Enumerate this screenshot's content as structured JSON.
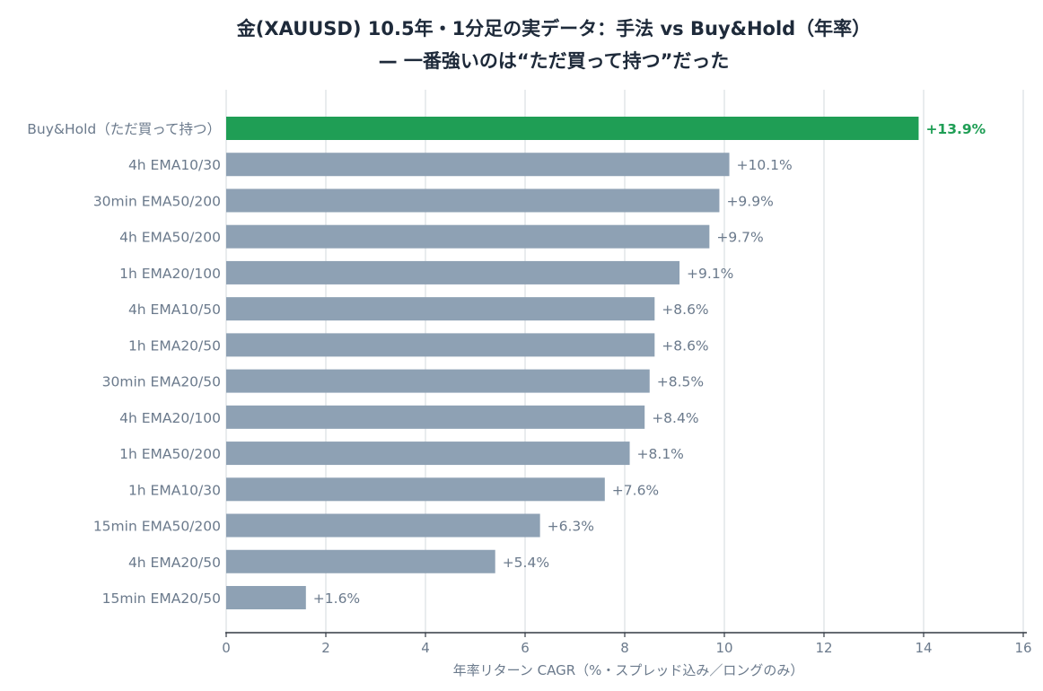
{
  "chart_data": {
    "type": "bar",
    "orientation": "horizontal",
    "title": "金(XAUUSD) 10.5年・1分足の実データ：手法 vs Buy&Hold（年率）",
    "subtitle": "— 一番強いのは“ただ買って持つ”だった",
    "xlabel": "年率リターン CAGR（%・スプレッド込み／ロングのみ）",
    "ylabel": "",
    "xlim": [
      0,
      16
    ],
    "xticks": [
      0,
      2,
      4,
      6,
      8,
      10,
      12,
      14,
      16
    ],
    "grid": "vertical",
    "categories": [
      "Buy&Hold（ただ買って持つ）",
      "4h EMA10/30",
      "30min EMA50/200",
      "4h EMA50/200",
      "1h EMA20/100",
      "4h EMA10/50",
      "1h EMA20/50",
      "30min EMA20/50",
      "4h EMA20/100",
      "1h EMA50/200",
      "1h EMA10/30",
      "15min EMA50/200",
      "4h EMA20/50",
      "15min EMA20/50"
    ],
    "values": [
      13.9,
      10.1,
      9.9,
      9.7,
      9.1,
      8.6,
      8.6,
      8.5,
      8.4,
      8.1,
      7.6,
      6.3,
      5.4,
      1.6
    ],
    "value_labels": [
      "+13.9%",
      "+10.1%",
      "+9.9%",
      "+9.7%",
      "+9.1%",
      "+8.6%",
      "+8.6%",
      "+8.5%",
      "+8.4%",
      "+8.1%",
      "+7.6%",
      "+6.3%",
      "+5.4%",
      "+1.6%"
    ],
    "highlight_index": 0,
    "colors": {
      "highlight": "#1f9e55",
      "bar": "#8ea1b4",
      "label": "#6b7a8c",
      "grid": "#e2e5e9",
      "axis": "#333a44",
      "title": "#1e2a3a"
    }
  }
}
